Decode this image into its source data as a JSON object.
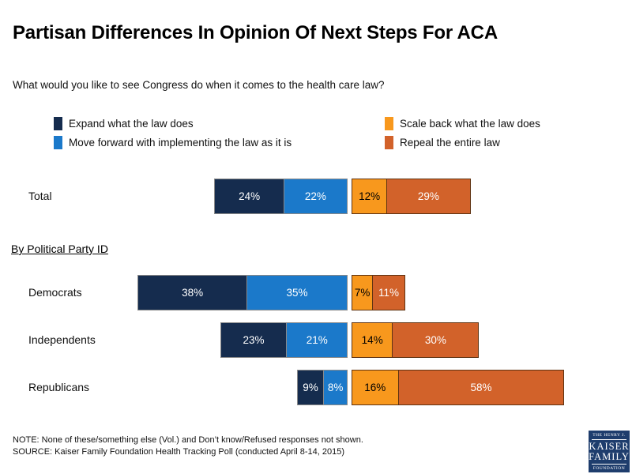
{
  "title": "Partisan Differences In Opinion Of Next Steps For ACA",
  "question": "What would you like to see Congress do when it comes to the health care law?",
  "section_label": "By Political Party ID",
  "footer": {
    "note": "NOTE: None of these/something else (Vol.) and Don’t know/Refused responses not shown.",
    "source": "SOURCE: Kaiser Family Foundation Health Tracking Poll (conducted April 8-14, 2015)"
  },
  "logo": {
    "line1": "THE HENRY J.",
    "line2": "KAISER",
    "line3": "FAMILY",
    "line4": "FOUNDATION",
    "background_color": "#1e3d6d"
  },
  "chart_data": {
    "type": "bar",
    "orientation": "horizontal, diverging two stacked groups per row",
    "unit": "%",
    "title": "Partisan Differences In Opinion Of Next Steps For ACA",
    "categories": [
      "Total",
      "Democrats",
      "Independents",
      "Republicans"
    ],
    "series": [
      {
        "key": "expand",
        "name": "Expand what the law does",
        "color": "#152c4e",
        "label_color": "#ffffff",
        "values": [
          24,
          38,
          23,
          9
        ]
      },
      {
        "key": "move-forward",
        "name": "Move forward with implementing the law as it is",
        "color": "#1b79ca",
        "label_color": "#ffffff",
        "values": [
          22,
          35,
          21,
          8
        ]
      },
      {
        "key": "scale-back",
        "name": "Scale back what the law does",
        "color": "#f8981d",
        "label_color": "#000000",
        "values": [
          12,
          7,
          14,
          16
        ]
      },
      {
        "key": "repeal",
        "name": "Repeal the entire law",
        "color": "#d2622a",
        "label_color": "#ffffff",
        "values": [
          29,
          11,
          30,
          58
        ]
      }
    ],
    "value_label_suffix": "%",
    "legend_position": "top, two columns",
    "grid": false,
    "axis_labels_shown": false
  }
}
